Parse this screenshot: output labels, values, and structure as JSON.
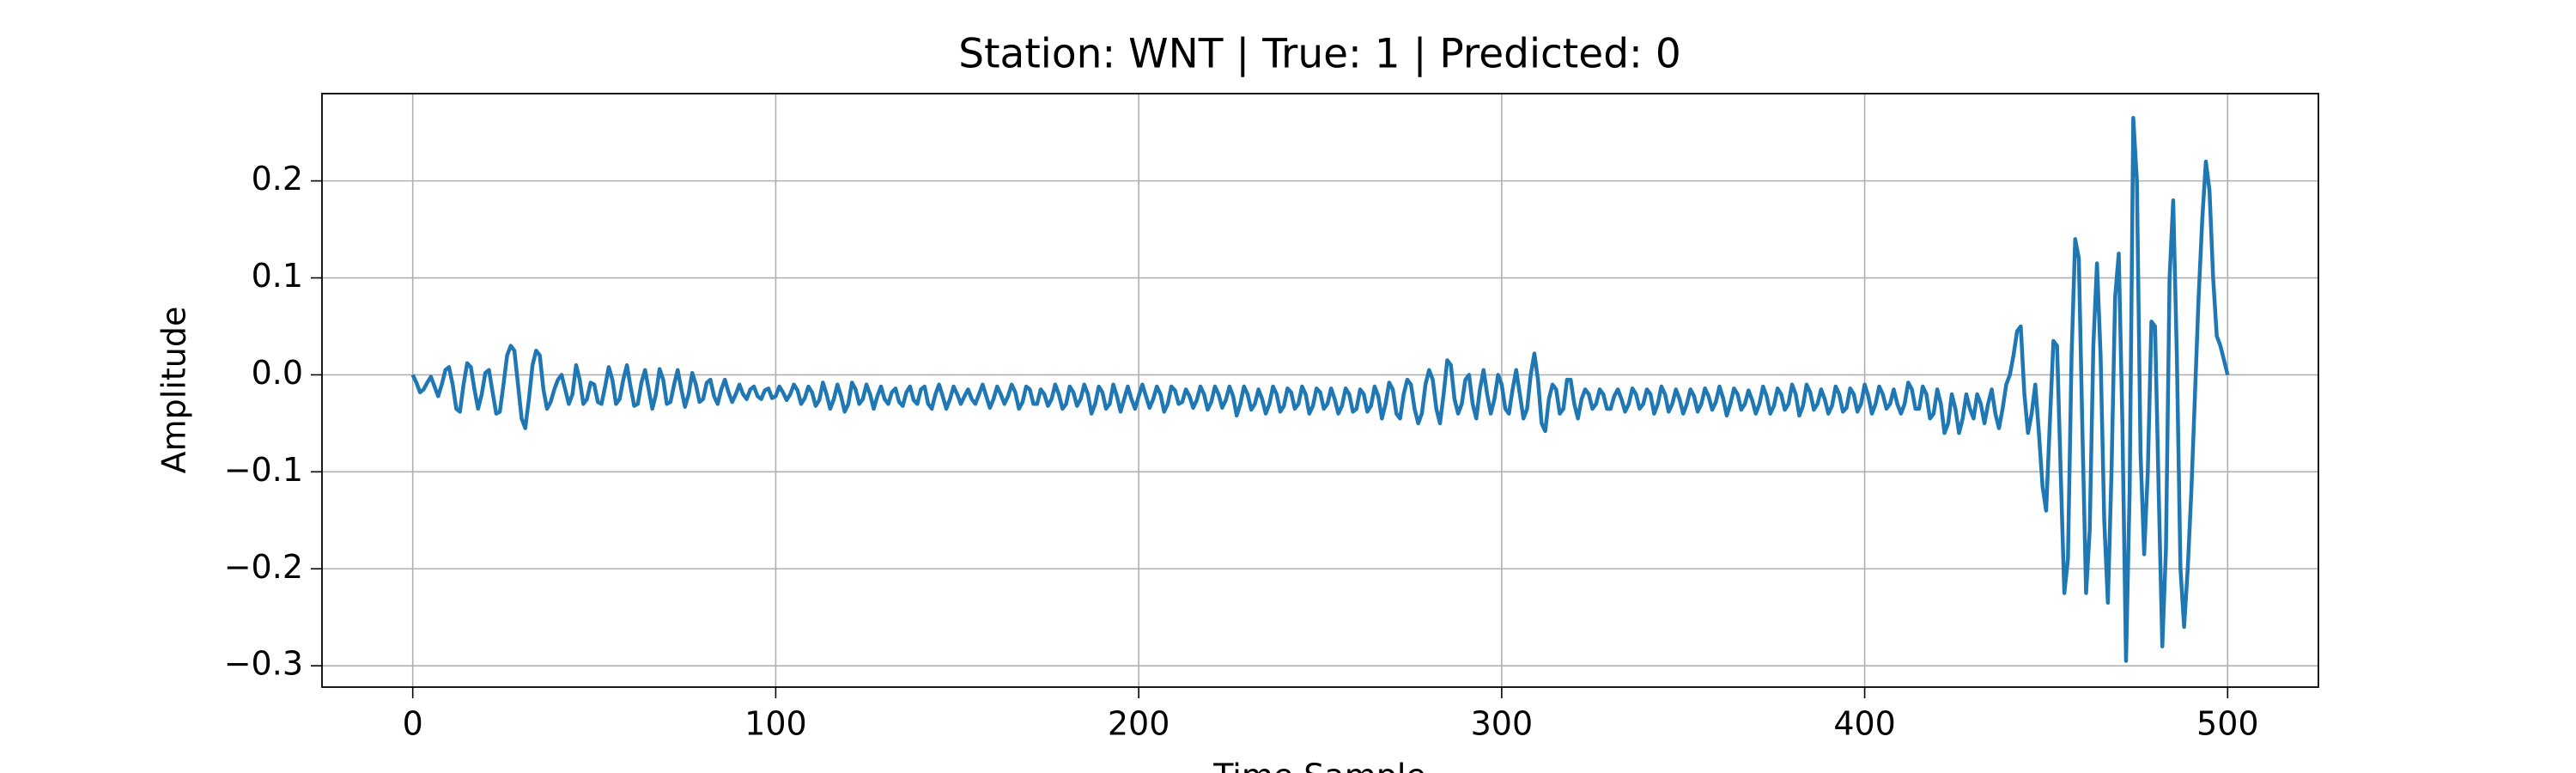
{
  "chart_data": {
    "type": "line",
    "title": "Station: WNT | True: 1 | Predicted: 0",
    "xlabel": "Time Sample",
    "ylabel": "Amplitude",
    "xlim": [
      -25,
      525
    ],
    "xticks": [
      0,
      100,
      200,
      300,
      400,
      500
    ],
    "ylim": [
      -0.322,
      0.29
    ],
    "yticks": [
      {
        "value": -0.3,
        "label": "−0.3"
      },
      {
        "value": -0.2,
        "label": "−0.2"
      },
      {
        "value": -0.1,
        "label": "−0.1"
      },
      {
        "value": 0,
        "label": "0.0"
      },
      0.1,
      0.2
    ],
    "grid": true,
    "series": [
      {
        "color": "#1f77b4",
        "values": [
          0,
          -0.008,
          -0.018,
          -0.015,
          -0.008,
          -0.002,
          -0.012,
          -0.022,
          -0.01,
          0.005,
          0.008,
          -0.01,
          -0.035,
          -0.038,
          -0.01,
          0.012,
          0.008,
          -0.015,
          -0.035,
          -0.02,
          0.002,
          0.005,
          -0.018,
          -0.04,
          -0.038,
          -0.01,
          0.02,
          0.03,
          0.025,
          -0.01,
          -0.045,
          -0.055,
          -0.025,
          0.01,
          0.025,
          0.02,
          -0.015,
          -0.035,
          -0.028,
          -0.015,
          -0.005,
          0.0,
          -0.015,
          -0.03,
          -0.02,
          0.01,
          -0.005,
          -0.03,
          -0.025,
          -0.008,
          -0.01,
          -0.028,
          -0.03,
          -0.012,
          0.008,
          -0.005,
          -0.03,
          -0.025,
          -0.005,
          0.01,
          -0.012,
          -0.032,
          -0.03,
          -0.008,
          0.005,
          -0.015,
          -0.035,
          -0.02,
          0.006,
          -0.005,
          -0.03,
          -0.028,
          -0.01,
          0.005,
          -0.015,
          -0.033,
          -0.02,
          0.002,
          -0.01,
          -0.028,
          -0.025,
          -0.008,
          -0.005,
          -0.022,
          -0.03,
          -0.015,
          -0.005,
          -0.018,
          -0.028,
          -0.02,
          -0.01,
          -0.02,
          -0.025,
          -0.015,
          -0.012,
          -0.022,
          -0.025,
          -0.016,
          -0.014,
          -0.024,
          -0.022,
          -0.012,
          -0.018,
          -0.026,
          -0.02,
          -0.01,
          -0.016,
          -0.03,
          -0.024,
          -0.012,
          -0.018,
          -0.032,
          -0.026,
          -0.008,
          -0.02,
          -0.035,
          -0.025,
          -0.01,
          -0.022,
          -0.038,
          -0.03,
          -0.008,
          -0.015,
          -0.03,
          -0.025,
          -0.01,
          -0.02,
          -0.035,
          -0.022,
          -0.012,
          -0.025,
          -0.03,
          -0.018,
          -0.014,
          -0.028,
          -0.032,
          -0.018,
          -0.012,
          -0.026,
          -0.03,
          -0.015,
          -0.012,
          -0.03,
          -0.035,
          -0.02,
          -0.01,
          -0.022,
          -0.035,
          -0.025,
          -0.012,
          -0.02,
          -0.03,
          -0.022,
          -0.015,
          -0.025,
          -0.03,
          -0.02,
          -0.01,
          -0.022,
          -0.034,
          -0.025,
          -0.012,
          -0.02,
          -0.03,
          -0.022,
          -0.01,
          -0.018,
          -0.035,
          -0.028,
          -0.012,
          -0.015,
          -0.03,
          -0.03,
          -0.015,
          -0.02,
          -0.032,
          -0.025,
          -0.01,
          -0.02,
          -0.035,
          -0.03,
          -0.012,
          -0.018,
          -0.032,
          -0.025,
          -0.01,
          -0.02,
          -0.04,
          -0.03,
          -0.012,
          -0.018,
          -0.035,
          -0.03,
          -0.01,
          -0.022,
          -0.038,
          -0.025,
          -0.012,
          -0.025,
          -0.035,
          -0.022,
          -0.01,
          -0.022,
          -0.034,
          -0.025,
          -0.012,
          -0.02,
          -0.038,
          -0.03,
          -0.012,
          -0.016,
          -0.03,
          -0.028,
          -0.015,
          -0.022,
          -0.034,
          -0.026,
          -0.012,
          -0.02,
          -0.036,
          -0.028,
          -0.012,
          -0.02,
          -0.034,
          -0.026,
          -0.012,
          -0.022,
          -0.042,
          -0.03,
          -0.012,
          -0.02,
          -0.036,
          -0.03,
          -0.015,
          -0.025,
          -0.04,
          -0.03,
          -0.012,
          -0.02,
          -0.038,
          -0.032,
          -0.014,
          -0.018,
          -0.035,
          -0.03,
          -0.012,
          -0.02,
          -0.04,
          -0.032,
          -0.014,
          -0.018,
          -0.035,
          -0.03,
          -0.014,
          -0.025,
          -0.04,
          -0.032,
          -0.014,
          -0.02,
          -0.038,
          -0.035,
          -0.015,
          -0.02,
          -0.038,
          -0.032,
          -0.012,
          -0.022,
          -0.045,
          -0.03,
          -0.008,
          -0.015,
          -0.04,
          -0.045,
          -0.02,
          -0.005,
          -0.01,
          -0.035,
          -0.05,
          -0.04,
          -0.01,
          0.005,
          -0.005,
          -0.035,
          -0.05,
          -0.02,
          0.015,
          0.01,
          -0.025,
          -0.04,
          -0.03,
          -0.005,
          0.0,
          -0.03,
          -0.045,
          -0.015,
          0.005,
          -0.02,
          -0.04,
          -0.025,
          0.0,
          -0.01,
          -0.035,
          -0.04,
          -0.015,
          0.005,
          -0.02,
          -0.045,
          -0.035,
          0.0,
          0.022,
          -0.005,
          -0.05,
          -0.058,
          -0.025,
          -0.01,
          -0.015,
          -0.04,
          -0.035,
          -0.005,
          -0.005,
          -0.03,
          -0.045,
          -0.025,
          -0.015,
          -0.02,
          -0.035,
          -0.03,
          -0.015,
          -0.02,
          -0.035,
          -0.035,
          -0.022,
          -0.015,
          -0.025,
          -0.038,
          -0.03,
          -0.014,
          -0.02,
          -0.035,
          -0.03,
          -0.015,
          -0.02,
          -0.04,
          -0.03,
          -0.012,
          -0.02,
          -0.038,
          -0.03,
          -0.015,
          -0.025,
          -0.04,
          -0.03,
          -0.015,
          -0.022,
          -0.038,
          -0.03,
          -0.014,
          -0.022,
          -0.036,
          -0.028,
          -0.012,
          -0.024,
          -0.042,
          -0.03,
          -0.014,
          -0.02,
          -0.036,
          -0.03,
          -0.016,
          -0.026,
          -0.04,
          -0.03,
          -0.012,
          -0.022,
          -0.04,
          -0.032,
          -0.014,
          -0.02,
          -0.036,
          -0.03,
          -0.01,
          -0.02,
          -0.042,
          -0.032,
          -0.01,
          -0.018,
          -0.036,
          -0.03,
          -0.015,
          -0.025,
          -0.04,
          -0.032,
          -0.012,
          -0.02,
          -0.038,
          -0.034,
          -0.014,
          -0.02,
          -0.038,
          -0.03,
          -0.01,
          -0.022,
          -0.04,
          -0.03,
          -0.012,
          -0.02,
          -0.035,
          -0.03,
          -0.015,
          -0.03,
          -0.04,
          -0.03,
          -0.008,
          -0.015,
          -0.035,
          -0.035,
          -0.012,
          -0.02,
          -0.045,
          -0.04,
          -0.015,
          -0.03,
          -0.06,
          -0.05,
          -0.02,
          -0.035,
          -0.06,
          -0.045,
          -0.02,
          -0.035,
          -0.045,
          -0.02,
          -0.03,
          -0.05,
          -0.03,
          -0.015,
          -0.04,
          -0.055,
          -0.035,
          -0.01,
          0.0,
          0.02,
          0.045,
          0.05,
          -0.02,
          -0.06,
          -0.04,
          -0.01,
          -0.06,
          -0.115,
          -0.14,
          -0.05,
          0.035,
          0.03,
          -0.1,
          -0.225,
          -0.19,
          0.02,
          0.14,
          0.12,
          -0.06,
          -0.225,
          -0.16,
          0.03,
          0.115,
          0.02,
          -0.15,
          -0.235,
          -0.1,
          0.08,
          0.125,
          -0.05,
          -0.295,
          -0.12,
          0.265,
          0.2,
          -0.08,
          -0.185,
          -0.1,
          0.055,
          0.05,
          -0.12,
          -0.28,
          -0.18,
          0.1,
          0.18,
          0.02,
          -0.2,
          -0.26,
          -0.2,
          -0.12,
          -0.02,
          0.08,
          0.16,
          0.22,
          0.19,
          0.1,
          0.04,
          0.03,
          0.015,
          0.0
        ]
      }
    ]
  }
}
